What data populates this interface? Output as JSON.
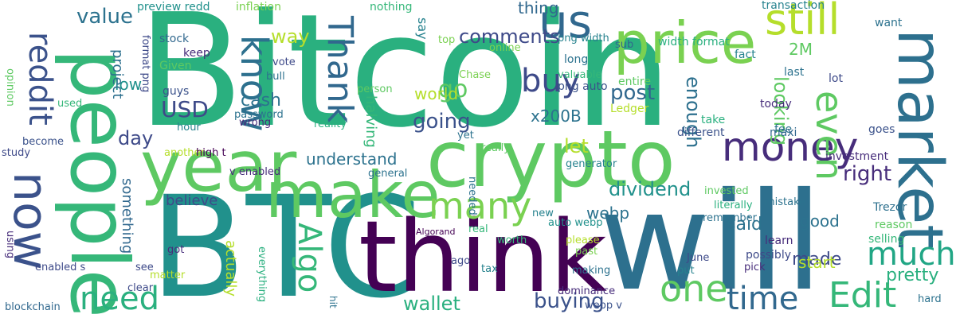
{
  "colors": {
    "background": "#ffffff",
    "palette": [
      "#440154",
      "#3b528b",
      "#21918c",
      "#2ab07f",
      "#5ec962",
      "#b5de2b",
      "#fde725"
    ]
  },
  "words": [
    {
      "text": "Bitcoin",
      "color": "#2ab07f"
    },
    {
      "text": "BTC",
      "color": "#21918c"
    },
    {
      "text": "will",
      "color": "#2d708e"
    },
    {
      "text": "think",
      "color": "#440154"
    },
    {
      "text": "crypto",
      "color": "#5ec962"
    },
    {
      "text": "year",
      "color": "#5ec962"
    },
    {
      "text": "people",
      "color": "#35b779"
    },
    {
      "text": "make",
      "color": "#5ec962"
    },
    {
      "text": "now",
      "color": "#3b528b"
    },
    {
      "text": "market",
      "color": "#2d708e"
    },
    {
      "text": "price",
      "color": "#7ad151"
    },
    {
      "text": "us",
      "color": "#31688e"
    },
    {
      "text": "still",
      "color": "#b5de2b"
    },
    {
      "text": "know",
      "color": "#2d708e"
    },
    {
      "text": "money",
      "color": "#472d7b"
    },
    {
      "text": "one",
      "color": "#5ec962"
    },
    {
      "text": "time",
      "color": "#31688e"
    },
    {
      "text": "Edit",
      "color": "#35b779"
    },
    {
      "text": "much",
      "color": "#21a685"
    },
    {
      "text": "many",
      "color": "#7ad151"
    },
    {
      "text": "need",
      "color": "#2ab07f"
    },
    {
      "text": "Thank",
      "color": "#31688e"
    },
    {
      "text": "reddit",
      "color": "#3b528b"
    },
    {
      "text": "buy",
      "color": "#3e4a89"
    },
    {
      "text": "even",
      "color": "#5ec962"
    },
    {
      "text": "Algo",
      "color": "#35b779"
    },
    {
      "text": "value",
      "color": "#2c728e"
    },
    {
      "text": "comments",
      "color": "#3e4a89"
    },
    {
      "text": "way",
      "color": "#b5de2b"
    },
    {
      "text": "going",
      "color": "#3b528b"
    },
    {
      "text": "go",
      "color": "#5ec962"
    },
    {
      "text": "USD",
      "color": "#3e4a89"
    },
    {
      "text": "cash",
      "color": "#2c728e"
    },
    {
      "text": "post",
      "color": "#31688e"
    },
    {
      "text": "enough",
      "color": "#2d708e"
    },
    {
      "text": "looking",
      "color": "#5ec962"
    },
    {
      "text": "right",
      "color": "#472d7b"
    },
    {
      "text": "said",
      "color": "#2c728e"
    },
    {
      "text": "dividend",
      "color": "#21918c"
    },
    {
      "text": "pretty",
      "color": "#2ab07f"
    },
    {
      "text": "wallet",
      "color": "#2ab07f"
    },
    {
      "text": "buying",
      "color": "#3b528b"
    },
    {
      "text": "made",
      "color": "#3e4a89"
    },
    {
      "text": "good",
      "color": "#2c728e"
    },
    {
      "text": "start",
      "color": "#b5de2b"
    },
    {
      "text": "let",
      "color": "#b5de2b"
    },
    {
      "text": "understand",
      "color": "#2c728e"
    },
    {
      "text": "world",
      "color": "#b5de2b"
    },
    {
      "text": "day",
      "color": "#3e4a89"
    },
    {
      "text": "low",
      "color": "#21918c"
    },
    {
      "text": "believe",
      "color": "#3e4a89"
    },
    {
      "text": "something",
      "color": "#31688e"
    },
    {
      "text": "halving",
      "color": "#35b779"
    },
    {
      "text": "actually",
      "color": "#b5de2b"
    },
    {
      "text": "project",
      "color": "#2d708e"
    },
    {
      "text": "thing",
      "color": "#31688e"
    },
    {
      "text": "x200B",
      "color": "#2c728e"
    },
    {
      "text": "2M",
      "color": "#5ec962"
    },
    {
      "text": "webp",
      "color": "#2c728e"
    },
    {
      "text": "say",
      "color": "#26828e"
    },
    {
      "text": "preview redd",
      "color": "#21918c"
    },
    {
      "text": "inflation",
      "color": "#7ad151"
    },
    {
      "text": "nothing",
      "color": "#35b779"
    },
    {
      "text": "transaction",
      "color": "#26828e"
    },
    {
      "text": "want",
      "color": "#2c728e"
    },
    {
      "text": "fact",
      "color": "#26828e"
    },
    {
      "text": "stock",
      "color": "#31688e"
    },
    {
      "text": "keep",
      "color": "#472d7b"
    },
    {
      "text": "Given",
      "color": "#5ec962"
    },
    {
      "text": "guys",
      "color": "#3b528b"
    },
    {
      "text": "format png",
      "color": "#3e4a89"
    },
    {
      "text": "png width",
      "color": "#26828e"
    },
    {
      "text": "width format",
      "color": "#2ab07f"
    },
    {
      "text": "sub",
      "color": "#31688e"
    },
    {
      "text": "long",
      "color": "#2c728e"
    },
    {
      "text": "valuable",
      "color": "#35b779"
    },
    {
      "text": "png auto",
      "color": "#3b528b"
    },
    {
      "text": "Ledger",
      "color": "#b5de2b"
    },
    {
      "text": "entire",
      "color": "#5ec962"
    },
    {
      "text": "last",
      "color": "#2c728e"
    },
    {
      "text": "lot",
      "color": "#3e4a89"
    },
    {
      "text": "today",
      "color": "#472d7b"
    },
    {
      "text": "fee",
      "color": "#2c728e"
    },
    {
      "text": "goes",
      "color": "#3b528b"
    },
    {
      "text": "take",
      "color": "#2ab07f"
    },
    {
      "text": "different",
      "color": "#3b528b"
    },
    {
      "text": "maxi",
      "color": "#31688e"
    },
    {
      "text": "investment",
      "color": "#472d7b"
    },
    {
      "text": "Chase",
      "color": "#7ad151"
    },
    {
      "text": "vote",
      "color": "#3e4a89"
    },
    {
      "text": "bull",
      "color": "#2c728e"
    },
    {
      "text": "opinion",
      "color": "#5ec962"
    },
    {
      "text": "used",
      "color": "#35b779"
    },
    {
      "text": "password",
      "color": "#2c728e"
    },
    {
      "text": "wrong",
      "color": "#472d7b"
    },
    {
      "text": "hour",
      "color": "#26828e"
    },
    {
      "text": "reality",
      "color": "#2ab07f"
    },
    {
      "text": "become",
      "color": "#3b528b"
    },
    {
      "text": "study",
      "color": "#3e4a89"
    },
    {
      "text": "another",
      "color": "#b5de2b"
    },
    {
      "text": "high t",
      "color": "#440154"
    },
    {
      "text": "general",
      "color": "#2c728e"
    },
    {
      "text": "v enabled",
      "color": "#472d7b"
    },
    {
      "text": "yet",
      "color": "#2c728e"
    },
    {
      "text": "really",
      "color": "#5ec962"
    },
    {
      "text": "generator",
      "color": "#26828e"
    },
    {
      "text": "invested",
      "color": "#5ec962"
    },
    {
      "text": "mistake",
      "color": "#2c728e"
    },
    {
      "text": "Trezor",
      "color": "#2d708e"
    },
    {
      "text": "reason",
      "color": "#5ec962"
    },
    {
      "text": "selling",
      "color": "#35b779"
    },
    {
      "text": "learn",
      "color": "#472d7b"
    },
    {
      "text": "possibly",
      "color": "#3e4a89"
    },
    {
      "text": "literally",
      "color": "#2ab07f"
    },
    {
      "text": "remember",
      "color": "#2c728e"
    },
    {
      "text": "June",
      "color": "#3e4a89"
    },
    {
      "text": "put",
      "color": "#26828e"
    },
    {
      "text": "pick",
      "color": "#472d7b"
    },
    {
      "text": "hard",
      "color": "#2c728e"
    },
    {
      "text": "new",
      "color": "#26828e"
    },
    {
      "text": "auto webp",
      "color": "#21918c"
    },
    {
      "text": "worth",
      "color": "#35b779"
    },
    {
      "text": "please",
      "color": "#b5de2b"
    },
    {
      "text": "past",
      "color": "#7ad151"
    },
    {
      "text": "making",
      "color": "#2c728e"
    },
    {
      "text": "dominance",
      "color": "#472d7b"
    },
    {
      "text": "webp v",
      "color": "#3b528b"
    },
    {
      "text": "Algorand",
      "color": "#440154"
    },
    {
      "text": "real",
      "color": "#35b779"
    },
    {
      "text": "ago",
      "color": "#3e4a89"
    },
    {
      "text": "tax",
      "color": "#26828e"
    },
    {
      "text": "needed",
      "color": "#2c728e"
    },
    {
      "text": "enabled s",
      "color": "#3e4a89"
    },
    {
      "text": "clear",
      "color": "#3e4a89"
    },
    {
      "text": "matter",
      "color": "#b5de2b"
    },
    {
      "text": "see",
      "color": "#3e4a89"
    },
    {
      "text": "got",
      "color": "#472d7b"
    },
    {
      "text": "blockchain",
      "color": "#31688e"
    },
    {
      "text": "everything",
      "color": "#2ab07f"
    },
    {
      "text": "hit",
      "color": "#2c728e"
    },
    {
      "text": "online",
      "color": "#7ad151"
    },
    {
      "text": "person",
      "color": "#5ec962"
    },
    {
      "text": "top",
      "color": "#7ad151"
    },
    {
      "text": "using",
      "color": "#472d7b"
    }
  ]
}
